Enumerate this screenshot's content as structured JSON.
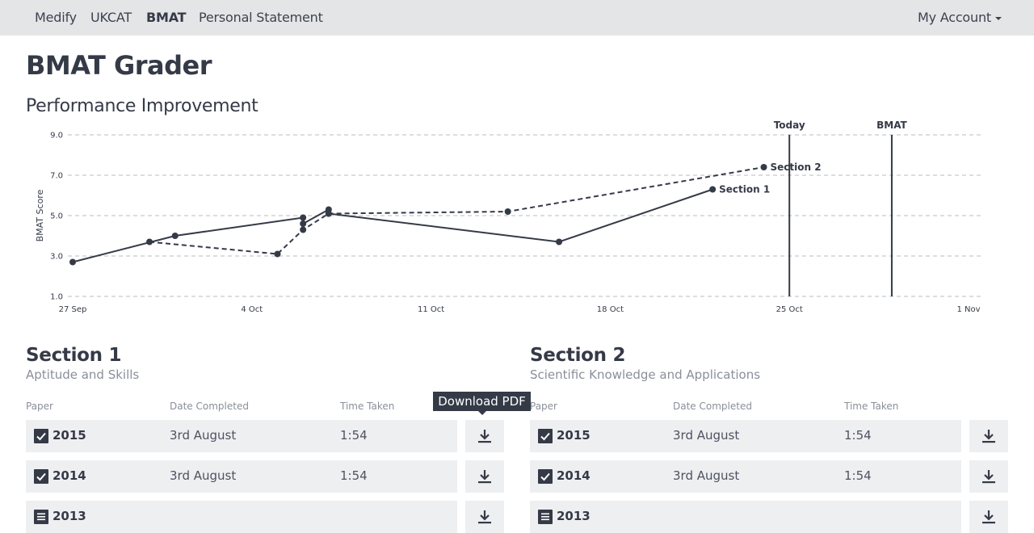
{
  "nav": {
    "brand": "Medify",
    "ukcat": "UKCAT",
    "bmat": "BMAT",
    "personal_statement": "Personal Statement",
    "account": "My Account"
  },
  "page_title": "BMAT Grader",
  "chart_title": "Performance Improvement",
  "chart_data": {
    "type": "line",
    "ylabel": "BMAT Score",
    "ylim": [
      1.0,
      9.0
    ],
    "y_ticks": [
      "1.0",
      "3.0",
      "5.0",
      "7.0",
      "9.0"
    ],
    "x_ticks": [
      {
        "label": "27 Sep",
        "date": "2015-09-27"
      },
      {
        "label": "4 Oct",
        "date": "2015-10-04"
      },
      {
        "label": "11 Oct",
        "date": "2015-10-11"
      },
      {
        "label": "18 Oct",
        "date": "2015-10-18"
      },
      {
        "label": "25 Oct",
        "date": "2015-10-25"
      },
      {
        "label": "1 Nov",
        "date": "2015-11-01"
      }
    ],
    "markers": [
      {
        "label": "Today",
        "date": "2015-10-25"
      },
      {
        "label": "BMAT",
        "date": "2015-10-29"
      }
    ],
    "series": [
      {
        "name": "Section 1",
        "style": "solid",
        "points": [
          {
            "x": "2015-09-27",
            "y": 2.7
          },
          {
            "x": "2015-10-01",
            "y": 4.0
          },
          {
            "x": "2015-10-06",
            "y": 4.9
          },
          {
            "x": "2015-10-06",
            "y": 4.6
          },
          {
            "x": "2015-10-07",
            "y": 5.3
          },
          {
            "x": "2015-10-07",
            "y": 5.1
          },
          {
            "x": "2015-10-16",
            "y": 3.7
          },
          {
            "x": "2015-10-22",
            "y": 6.3
          }
        ]
      },
      {
        "name": "Section 2",
        "style": "dashed",
        "points": [
          {
            "x": "2015-09-30",
            "y": 3.7
          },
          {
            "x": "2015-10-05",
            "y": 3.1
          },
          {
            "x": "2015-10-06",
            "y": 4.3
          },
          {
            "x": "2015-10-07",
            "y": 5.1
          },
          {
            "x": "2015-10-14",
            "y": 5.2
          },
          {
            "x": "2015-10-24",
            "y": 7.4
          }
        ]
      }
    ],
    "grid": true
  },
  "section1": {
    "title": "Section 1",
    "subtitle": "Aptitude and Skills",
    "headers": {
      "paper": "Paper",
      "date": "Date Completed",
      "time": "Time Taken"
    },
    "rows": [
      {
        "year": "2015",
        "date": "3rd August",
        "time": "1:54",
        "status": "completed"
      },
      {
        "year": "2014",
        "date": "3rd August",
        "time": "1:54",
        "status": "completed"
      },
      {
        "year": "2013",
        "date": "",
        "time": "",
        "status": "document"
      }
    ]
  },
  "section2": {
    "title": "Section 2",
    "subtitle": "Scientific Knowledge and Applications",
    "headers": {
      "paper": "Paper",
      "date": "Date Completed",
      "time": "Time Taken"
    },
    "rows": [
      {
        "year": "2015",
        "date": "3rd August",
        "time": "1:54",
        "status": "completed"
      },
      {
        "year": "2014",
        "date": "3rd August",
        "time": "1:54",
        "status": "completed"
      },
      {
        "year": "2013",
        "date": "",
        "time": "",
        "status": "document"
      }
    ]
  },
  "tooltip": "Download PDF",
  "colors": {
    "navbar": "#e4e5e7",
    "text": "#353a47",
    "row": "#eeeff1",
    "muted": "#8a8f99"
  }
}
